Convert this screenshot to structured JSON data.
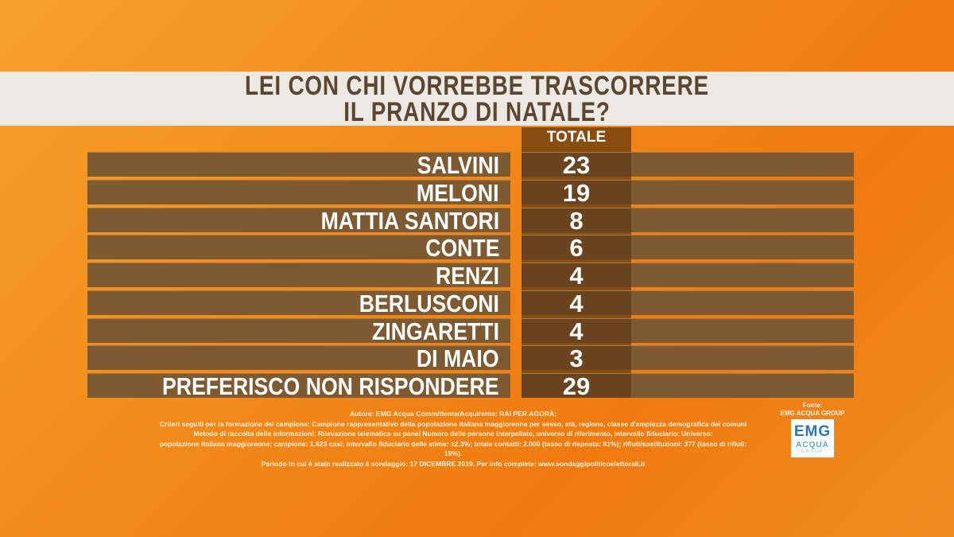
{
  "title": {
    "line1": "LEI CON CHI VORREBBE TRASCORRERE",
    "line2": "IL PRANZO DI NATALE?"
  },
  "chart_data": {
    "type": "table",
    "column_header": "TOTALE",
    "categories": [
      "SALVINI",
      "MELONI",
      "MATTIA SANTORI",
      "CONTE",
      "RENZI",
      "BERLUSCONI",
      "ZINGARETTI",
      "DI MAIO",
      "PREFERISCO NON RISPONDERE"
    ],
    "values": [
      23,
      19,
      8,
      6,
      4,
      4,
      4,
      3,
      29
    ]
  },
  "notes": [
    "Autore: EMG Acqua Committente/Acquirente: RAI PER AGORÀ;",
    "Criteri seguiti per la formazione del campione: Campione rappresentativo della popolazione italiana maggiorenne per sesso, età, regione, classe d'ampiezza demografica dei comuni",
    "Metodo di raccolta delle informazioni: Rilevazione telematica su panel Numero delle persone interpellate, universo di riferimento, intervallo fiduciario: Universo:",
    "popolazione italiana maggiorenne; campione: 1.623 casi; intervallo fiduciario delle stime: ±2,3%; totale contatti: 2.000 (tasso di risposta: 81%); rifiuti/sostituzioni: 377 (tasso di rifiuti: 19%).",
    "Periodo in cui è stato realizzato il sondaggio: 17 DICEMBRE 2019. Per info complete: www.sondaggipoliticoelettorali.it"
  ],
  "source": {
    "label": "Fonte:",
    "name": "EMG ACQUA GROUP"
  },
  "logo": {
    "top": "EMG",
    "middle": "ACQUA",
    "bottom": "GROUP"
  }
}
